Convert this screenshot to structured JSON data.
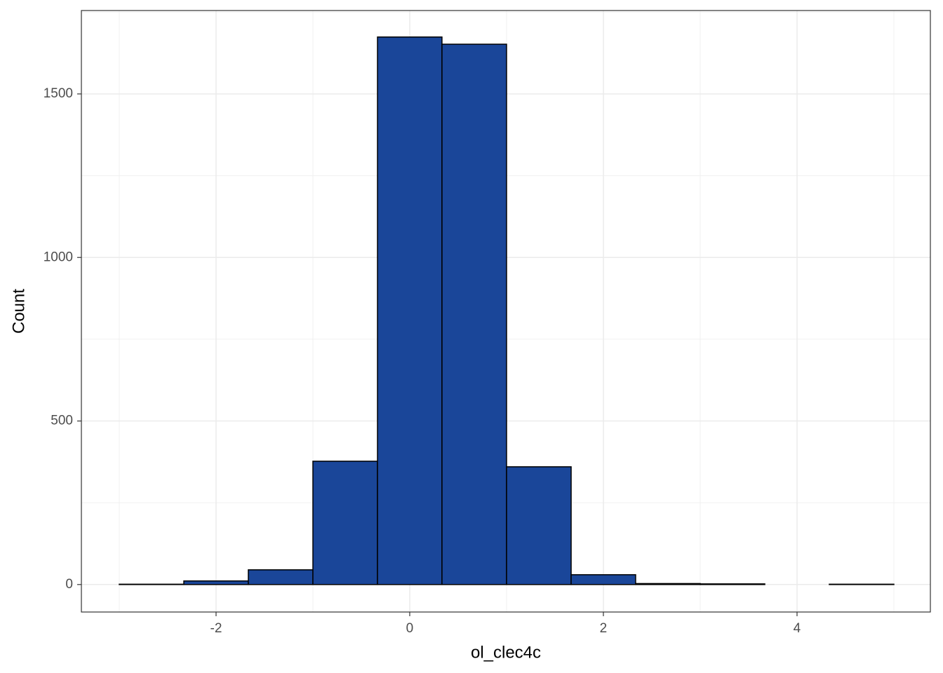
{
  "chart_data": {
    "type": "histogram",
    "x_label": "ol_clec4c",
    "y_label": "Count",
    "bins": [
      -3,
      -2.333,
      -1.667,
      -1,
      -0.333,
      0.333,
      1,
      1.667,
      2.333,
      3,
      3.667,
      4.333,
      5
    ],
    "values": [
      1,
      11,
      45,
      377,
      1674,
      1652,
      360,
      30,
      3,
      2,
      0,
      1
    ],
    "color": "#1a4699",
    "edge_color": "#000000",
    "xlim": [
      -3.391,
      5.377
    ],
    "ylim": [
      -84,
      1755
    ],
    "xticks": [
      -2,
      0,
      2,
      4
    ],
    "yticks": [
      0,
      500,
      1000,
      1500
    ],
    "grid": true
  }
}
